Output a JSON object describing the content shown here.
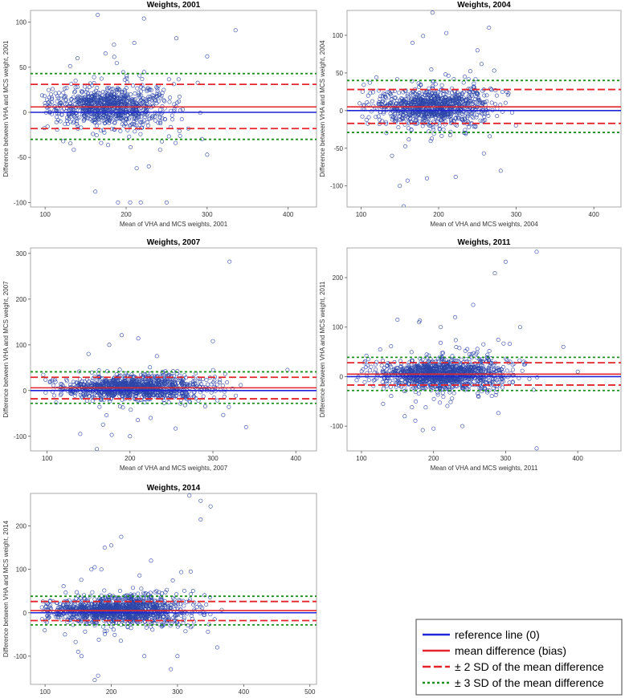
{
  "legend": {
    "items": [
      {
        "label": "reference line (0)",
        "color": "#1f24d6",
        "style": "solid"
      },
      {
        "label": "mean difference (bias)",
        "color": "#e3242b",
        "style": "solid"
      },
      {
        "label": "± 2 SD of the mean difference",
        "color": "#e3242b",
        "style": "dashed"
      },
      {
        "label": "± 3 SD of the mean difference",
        "color": "#1a8f1a",
        "style": "dotted"
      }
    ]
  },
  "colors": {
    "points": "#2c45a8",
    "reference": "#1f24d6",
    "bias": "#e3242b",
    "sd3": "#1a8f1a"
  },
  "chart_data": [
    {
      "type": "scatter",
      "title": "Weights, 2001",
      "xlabel": "Mean of VHA and MCS weights, 2001",
      "ylabel": "Difference between VHA and MCS weight, 2001",
      "xlim": [
        82,
        435
      ],
      "ylim": [
        -105,
        113
      ],
      "xticks": [
        100,
        200,
        300,
        400
      ],
      "yticks": [
        -100,
        -50,
        0,
        50,
        100
      ],
      "reference": 0,
      "bias": 6,
      "sd2": [
        -18,
        31
      ],
      "sd3": [
        -30,
        43
      ],
      "cloud": {
        "x_center": 180,
        "x_spread": 36,
        "x_min": 95,
        "x_max": 295,
        "y_spread": 10,
        "n": 900
      },
      "outliers": [
        [
          165,
          108
        ],
        [
          222,
          104
        ],
        [
          335,
          91
        ],
        [
          190,
          -100
        ],
        [
          205,
          -100
        ],
        [
          218,
          -100
        ],
        [
          250,
          -100
        ],
        [
          300,
          -47
        ],
        [
          213,
          -62
        ],
        [
          228,
          -60
        ],
        [
          185,
          75
        ],
        [
          210,
          77
        ],
        [
          262,
          82
        ],
        [
          140,
          60
        ],
        [
          300,
          62
        ],
        [
          162,
          -88
        ]
      ]
    },
    {
      "type": "scatter",
      "title": "Weights, 2004",
      "xlabel": "Mean of VHA and MCS weights, 2004",
      "ylabel": "Difference between VHA and MCS weight, 2004",
      "xlim": [
        82,
        435
      ],
      "ylim": [
        -128,
        133
      ],
      "xticks": [
        100,
        200,
        300,
        400
      ],
      "yticks": [
        -100,
        -50,
        0,
        50,
        100
      ],
      "reference": 0,
      "bias": 5,
      "sd2": [
        -17,
        28
      ],
      "sd3": [
        -29,
        40
      ],
      "cloud": {
        "x_center": 195,
        "x_spread": 38,
        "x_min": 98,
        "x_max": 330,
        "y_spread": 11,
        "n": 950
      },
      "outliers": [
        [
          192,
          130
        ],
        [
          265,
          110
        ],
        [
          210,
          103
        ],
        [
          180,
          99
        ],
        [
          155,
          -127
        ],
        [
          150,
          -100
        ],
        [
          160,
          -93
        ],
        [
          185,
          -90
        ],
        [
          222,
          -88
        ],
        [
          280,
          -80
        ],
        [
          140,
          -60
        ],
        [
          250,
          80
        ]
      ]
    },
    {
      "type": "scatter",
      "title": "Weights, 2007",
      "xlabel": "Mean of VHA and MCS weights, 2007",
      "ylabel": "Difference between VHA and MCS weight, 2007",
      "xlim": [
        80,
        425
      ],
      "ylim": [
        -132,
        312
      ],
      "xticks": [
        100,
        200,
        300,
        400
      ],
      "yticks": [
        -100,
        0,
        100,
        200,
        300
      ],
      "reference": 0,
      "bias": 6,
      "sd2": [
        -18,
        29
      ],
      "sd3": [
        -28,
        41
      ],
      "cloud": {
        "x_center": 205,
        "x_spread": 42,
        "x_min": 95,
        "x_max": 345,
        "y_spread": 12,
        "n": 1100
      },
      "outliers": [
        [
          320,
          282
        ],
        [
          190,
          121
        ],
        [
          210,
          114
        ],
        [
          175,
          100
        ],
        [
          300,
          108
        ],
        [
          390,
          45
        ],
        [
          160,
          -128
        ],
        [
          140,
          -95
        ],
        [
          178,
          -97
        ],
        [
          200,
          -100
        ],
        [
          255,
          -83
        ],
        [
          340,
          -80
        ],
        [
          225,
          -60
        ],
        [
          150,
          80
        ]
      ]
    },
    {
      "type": "scatter",
      "title": "Weights, 2011",
      "xlabel": "Mean of VHA and MCS weights, 2011",
      "ylabel": "Difference between VHA and MCS weight, 2011",
      "xlim": [
        80,
        460
      ],
      "ylim": [
        -150,
        260
      ],
      "xticks": [
        100,
        200,
        300,
        400
      ],
      "yticks": [
        -100,
        0,
        100,
        200
      ],
      "reference": 0,
      "bias": 5,
      "sd2": [
        -17,
        28
      ],
      "sd3": [
        -28,
        39
      ],
      "cloud": {
        "x_center": 215,
        "x_spread": 45,
        "x_min": 90,
        "x_max": 370,
        "y_spread": 14,
        "n": 1200
      },
      "outliers": [
        [
          343,
          252
        ],
        [
          300,
          232
        ],
        [
          285,
          209
        ],
        [
          255,
          145
        ],
        [
          180,
          110
        ],
        [
          230,
          120
        ],
        [
          210,
          100
        ],
        [
          320,
          100
        ],
        [
          380,
          60
        ],
        [
          400,
          10
        ],
        [
          343,
          -145
        ],
        [
          200,
          -105
        ],
        [
          185,
          -108
        ],
        [
          240,
          -100
        ],
        [
          160,
          -80
        ],
        [
          130,
          -55
        ],
        [
          150,
          115
        ]
      ]
    },
    {
      "type": "scatter",
      "title": "Weights, 2014",
      "xlabel": "Mean of VHA and MCS weights, 2014",
      "ylabel": "Difference between VHA and MCS weight, 2014",
      "xlim": [
        78,
        510
      ],
      "ylim": [
        -165,
        275
      ],
      "xticks": [
        100,
        200,
        300,
        400,
        500
      ],
      "yticks": [
        -100,
        0,
        100,
        200
      ],
      "reference": 0,
      "bias": 5,
      "sd2": [
        -18,
        26
      ],
      "sd3": [
        -28,
        38
      ],
      "cloud": {
        "x_center": 210,
        "x_spread": 50,
        "x_min": 95,
        "x_max": 420,
        "y_spread": 14,
        "n": 1300
      },
      "outliers": [
        [
          318,
          270
        ],
        [
          335,
          258
        ],
        [
          350,
          245
        ],
        [
          335,
          215
        ],
        [
          215,
          175
        ],
        [
          200,
          155
        ],
        [
          190,
          150
        ],
        [
          175,
          105
        ],
        [
          185,
          100
        ],
        [
          170,
          100
        ],
        [
          260,
          120
        ],
        [
          320,
          95
        ],
        [
          175,
          -155
        ],
        [
          180,
          -145
        ],
        [
          290,
          -130
        ],
        [
          155,
          -100
        ],
        [
          150,
          -90
        ],
        [
          250,
          -100
        ],
        [
          300,
          -100
        ],
        [
          360,
          -80
        ],
        [
          130,
          -50
        ]
      ]
    }
  ]
}
